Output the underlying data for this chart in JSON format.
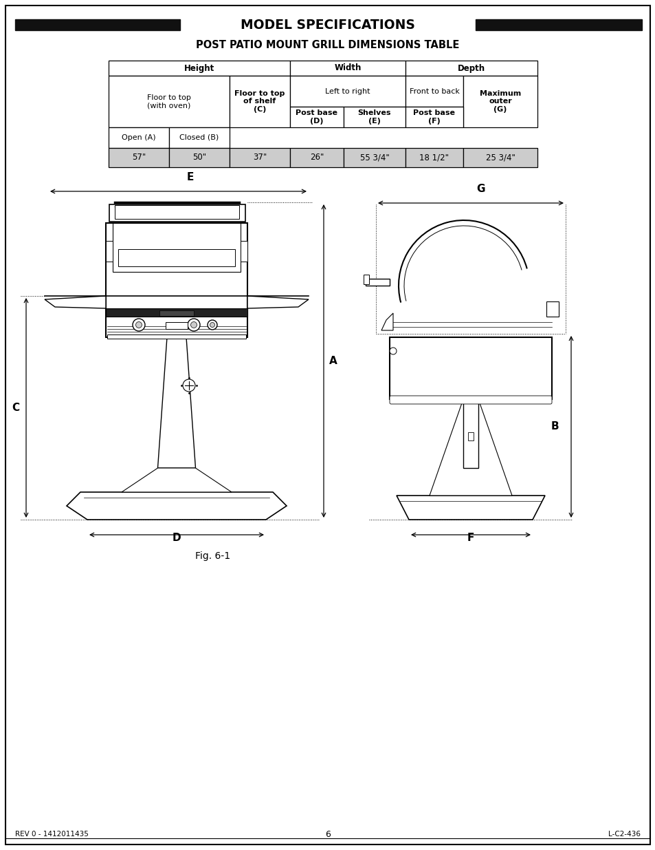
{
  "title": "MODEL SPECIFICATIONS",
  "subtitle": "POST PATIO MOUNT GRILL DIMENSIONS TABLE",
  "fig_label": "Fig. 6-1",
  "footer_left": "REV 0 - 1412011435",
  "footer_center": "6",
  "footer_right": "L-C2-436",
  "bg_color": "#ffffff",
  "header_bar_color": "#1a1a1a",
  "table_data_bg": "#cccccc",
  "row3": [
    "57\"",
    "50\"",
    "37\"",
    "26\"",
    "55 3/4\"",
    "18 1/2\"",
    "25 3/4\""
  ]
}
